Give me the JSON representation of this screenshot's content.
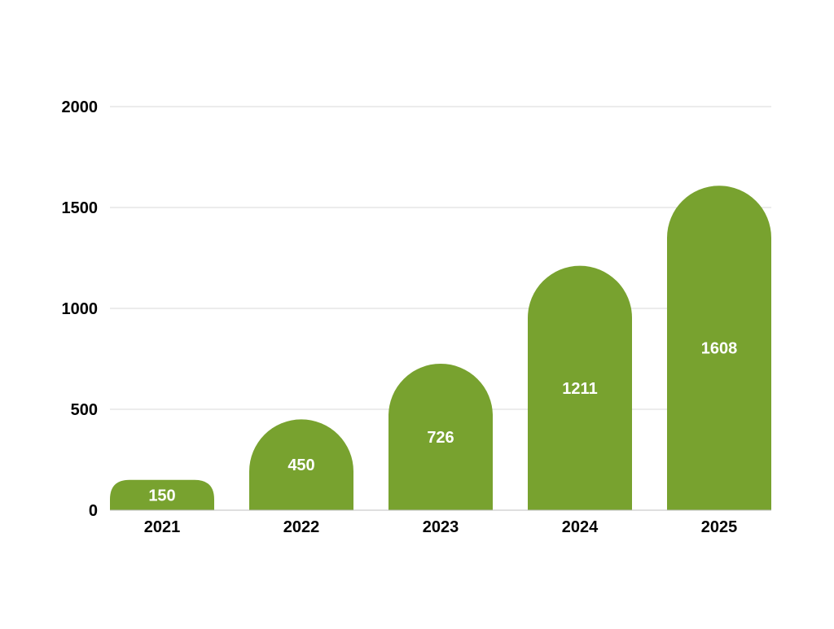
{
  "chart_data": {
    "type": "bar",
    "categories": [
      "2021",
      "2022",
      "2023",
      "2024",
      "2025"
    ],
    "values": [
      150,
      450,
      726,
      1211,
      1608
    ],
    "title": "",
    "xlabel": "",
    "ylabel": "",
    "ylim": [
      0,
      2000
    ],
    "yticks": [
      "0",
      "500",
      "1000",
      "1500",
      "2000"
    ],
    "grid": true,
    "legend": "none",
    "bar_color": "#78a22f",
    "bar_style": "rounded-top",
    "data_labels": [
      "150",
      "450",
      "726",
      "1211",
      "1608"
    ]
  }
}
